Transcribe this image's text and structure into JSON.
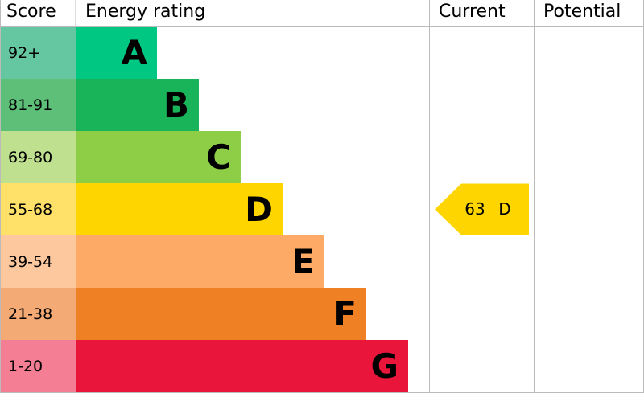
{
  "header": {
    "score": "Score",
    "rating": "Energy rating",
    "current": "Current",
    "potential": "Potential"
  },
  "bands": [
    {
      "score": "92+",
      "letter": "A",
      "color": "#00c781",
      "score_color": "#65c7a2"
    },
    {
      "score": "81-91",
      "letter": "B",
      "color": "#19b459",
      "score_color": "#5dbf78"
    },
    {
      "score": "69-80",
      "letter": "C",
      "color": "#8dce46",
      "score_color": "#bfe08f"
    },
    {
      "score": "55-68",
      "letter": "D",
      "color": "#ffd500",
      "score_color": "#ffe16a"
    },
    {
      "score": "39-54",
      "letter": "E",
      "color": "#fcaa65",
      "score_color": "#fdc89e"
    },
    {
      "score": "21-38",
      "letter": "F",
      "color": "#ef8023",
      "score_color": "#f4aa74"
    },
    {
      "score": "1-20",
      "letter": "G",
      "color": "#e9153b",
      "score_color": "#f47e93"
    }
  ],
  "current": {
    "value": 63,
    "letter": "D"
  }
}
